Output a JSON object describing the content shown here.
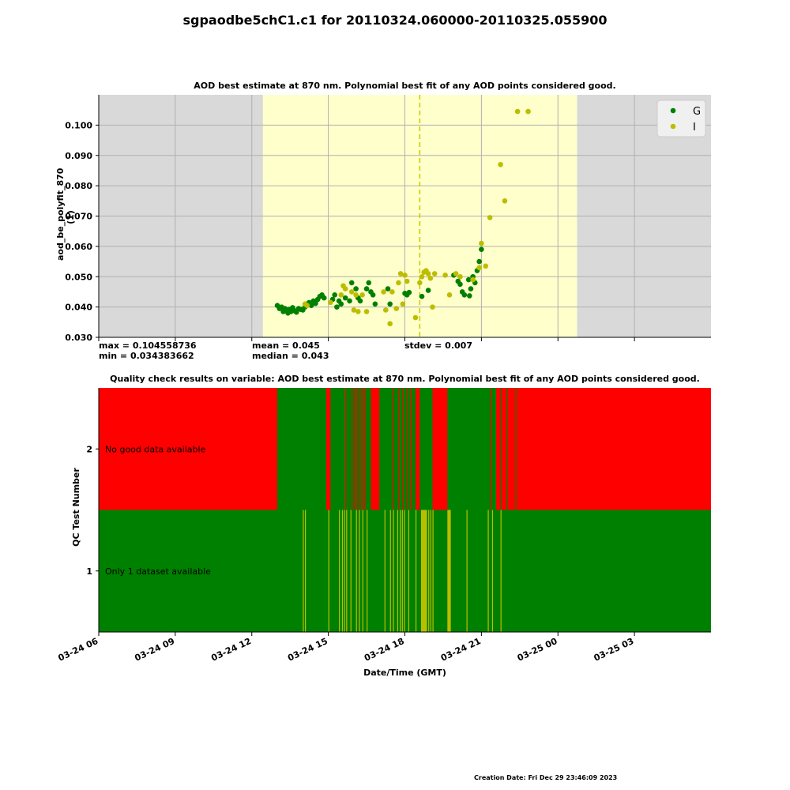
{
  "page": {
    "title": "sgpaodbe5chC1.c1 for 20110324.060000-20110325.055900",
    "footer": "Creation Date: Fri Dec 29 23:46:09 2023"
  },
  "stats": {
    "max": "max = 0.104558736",
    "min": "min = 0.034383662",
    "mean": "mean = 0.045",
    "median": "median = 0.043",
    "stdev": "stdev = 0.007"
  },
  "chart_data": [
    {
      "type": "scatter",
      "title": "AOD best estimate at 870 nm. Polynomial best fit of any AOD points considered good.",
      "xlabel": "",
      "ylabel": "aod_be_polyfit_870 (1)",
      "xlim": [
        "2011-03-24 06:00",
        "2011-03-25 06:00"
      ],
      "ylim": [
        0.03,
        0.11
      ],
      "yticks": [
        "0.030",
        "0.040",
        "0.050",
        "0.060",
        "0.070",
        "0.080",
        "0.090",
        "0.100"
      ],
      "grid": true,
      "legend_position": "top-right",
      "background": {
        "out_of_range": "#d9d9d9",
        "valid": "#ffffcc",
        "valid_range": [
          "2011-03-24 12:26",
          "2011-03-25 00:45"
        ]
      },
      "markers": {
        "dashed_line": "2011-03-24 18:35",
        "dashed_color": "#c8c800"
      },
      "colors": {
        "G": "#008000",
        "I": "#bdbd00"
      },
      "series": [
        {
          "name": "G",
          "points": [
            [
              "2011-03-24 13:00",
              0.0405
            ],
            [
              "2011-03-24 13:05",
              0.0395
            ],
            [
              "2011-03-24 13:10",
              0.04
            ],
            [
              "2011-03-24 13:14",
              0.0385
            ],
            [
              "2011-03-24 13:18",
              0.0395
            ],
            [
              "2011-03-24 13:22",
              0.039
            ],
            [
              "2011-03-24 13:25",
              0.038
            ],
            [
              "2011-03-24 13:28",
              0.0392
            ],
            [
              "2011-03-24 13:32",
              0.0385
            ],
            [
              "2011-03-24 13:36",
              0.0398
            ],
            [
              "2011-03-24 13:40",
              0.0388
            ],
            [
              "2011-03-24 13:45",
              0.0383
            ],
            [
              "2011-03-24 13:50",
              0.0395
            ],
            [
              "2011-03-24 13:55",
              0.0392
            ],
            [
              "2011-03-24 14:00",
              0.039
            ],
            [
              "2011-03-24 14:05",
              0.04
            ],
            [
              "2011-03-24 14:10",
              0.041
            ],
            [
              "2011-03-24 14:15",
              0.0415
            ],
            [
              "2011-03-24 14:20",
              0.0405
            ],
            [
              "2011-03-24 14:25",
              0.042
            ],
            [
              "2011-03-24 14:30",
              0.0412
            ],
            [
              "2011-03-24 14:35",
              0.0425
            ],
            [
              "2011-03-24 14:40",
              0.0435
            ],
            [
              "2011-03-24 14:45",
              0.044
            ],
            [
              "2011-03-24 14:50",
              0.043
            ],
            [
              "2011-03-24 15:10",
              0.0425
            ],
            [
              "2011-03-24 15:15",
              0.044
            ],
            [
              "2011-03-24 15:20",
              0.04
            ],
            [
              "2011-03-24 15:25",
              0.042
            ],
            [
              "2011-03-24 15:30",
              0.041
            ],
            [
              "2011-03-24 15:40",
              0.043
            ],
            [
              "2011-03-24 15:50",
              0.042
            ],
            [
              "2011-03-24 15:55",
              0.048
            ],
            [
              "2011-03-24 16:05",
              0.046
            ],
            [
              "2011-03-24 16:10",
              0.043
            ],
            [
              "2011-03-24 16:15",
              0.042
            ],
            [
              "2011-03-24 16:30",
              0.046
            ],
            [
              "2011-03-24 16:35",
              0.048
            ],
            [
              "2011-03-24 16:40",
              0.045
            ],
            [
              "2011-03-24 16:45",
              0.044
            ],
            [
              "2011-03-24 16:50",
              0.041
            ],
            [
              "2011-03-24 17:20",
              0.046
            ],
            [
              "2011-03-24 17:25",
              0.041
            ],
            [
              "2011-03-24 18:00",
              0.0445
            ],
            [
              "2011-03-24 18:05",
              0.044
            ],
            [
              "2011-03-24 18:10",
              0.0448
            ],
            [
              "2011-03-24 18:40",
              0.0435
            ],
            [
              "2011-03-24 18:55",
              0.0455
            ],
            [
              "2011-03-24 19:55",
              0.0505
            ],
            [
              "2011-03-24 20:05",
              0.0485
            ],
            [
              "2011-03-24 20:10",
              0.0475
            ],
            [
              "2011-03-24 20:15",
              0.045
            ],
            [
              "2011-03-24 20:20",
              0.044
            ],
            [
              "2011-03-24 20:30",
              0.049
            ],
            [
              "2011-03-24 20:35",
              0.046
            ],
            [
              "2011-03-24 20:40",
              0.05
            ],
            [
              "2011-03-24 20:45",
              0.048
            ],
            [
              "2011-03-24 20:50",
              0.052
            ],
            [
              "2011-03-24 20:55",
              0.055
            ],
            [
              "2011-03-24 21:00",
              0.059
            ],
            [
              "2011-03-24 20:32",
              0.0437
            ]
          ]
        },
        {
          "name": "I",
          "points": [
            [
              "2011-03-24 14:05",
              0.041
            ],
            [
              "2011-03-24 14:10",
              0.0405
            ],
            [
              "2011-03-24 15:05",
              0.0415
            ],
            [
              "2011-03-24 15:30",
              0.044
            ],
            [
              "2011-03-24 15:35",
              0.047
            ],
            [
              "2011-03-24 15:40",
              0.046
            ],
            [
              "2011-03-24 15:55",
              0.045
            ],
            [
              "2011-03-24 16:05",
              0.044
            ],
            [
              "2011-03-24 16:00",
              0.039
            ],
            [
              "2011-03-24 16:20",
              0.044
            ],
            [
              "2011-03-24 16:10",
              0.0385
            ],
            [
              "2011-03-24 16:30",
              0.0385
            ],
            [
              "2011-03-24 17:10",
              0.045
            ],
            [
              "2011-03-24 17:15",
              0.039
            ],
            [
              "2011-03-24 17:25",
              0.0345
            ],
            [
              "2011-03-24 17:30",
              0.045
            ],
            [
              "2011-03-24 17:40",
              0.0395
            ],
            [
              "2011-03-24 17:45",
              0.048
            ],
            [
              "2011-03-24 17:50",
              0.051
            ],
            [
              "2011-03-24 17:55",
              0.041
            ],
            [
              "2011-03-24 18:00",
              0.0505
            ],
            [
              "2011-03-24 18:05",
              0.0485
            ],
            [
              "2011-03-24 18:25",
              0.0365
            ],
            [
              "2011-03-24 18:35",
              0.048
            ],
            [
              "2011-03-24 18:40",
              0.05
            ],
            [
              "2011-03-24 18:45",
              0.0515
            ],
            [
              "2011-03-24 18:50",
              0.052
            ],
            [
              "2011-03-24 18:55",
              0.051
            ],
            [
              "2011-03-24 19:00",
              0.0495
            ],
            [
              "2011-03-24 19:05",
              0.04
            ],
            [
              "2011-03-24 19:10",
              0.051
            ],
            [
              "2011-03-24 19:35",
              0.0505
            ],
            [
              "2011-03-24 19:45",
              0.044
            ],
            [
              "2011-03-24 20:00",
              0.051
            ],
            [
              "2011-03-24 20:10",
              0.05
            ],
            [
              "2011-03-24 20:40",
              0.049
            ],
            [
              "2011-03-24 20:55",
              0.053
            ],
            [
              "2011-03-24 21:00",
              0.061
            ],
            [
              "2011-03-24 21:10",
              0.0535
            ],
            [
              "2011-03-24 21:20",
              0.0695
            ],
            [
              "2011-03-24 21:45",
              0.087
            ],
            [
              "2011-03-24 21:55",
              0.075
            ],
            [
              "2011-03-24 22:25",
              0.1045
            ],
            [
              "2011-03-24 22:50",
              0.1045
            ]
          ]
        }
      ]
    },
    {
      "type": "heatmap",
      "title": "Quality check results on variable: AOD best estimate at 870 nm. Polynomial best fit of any AOD points considered good.",
      "xlabel": "Date/Time (GMT)",
      "ylabel": "QC Test Number",
      "xlim": [
        "2011-03-24 06:00",
        "2011-03-25 06:00"
      ],
      "xticks": [
        "03-24 06",
        "03-24 09",
        "03-24 12",
        "03-24 15",
        "03-24 18",
        "03-24 21",
        "03-25 00",
        "03-25 03"
      ],
      "colors": {
        "bad": "#ff0000",
        "good": "#008000",
        "indeterminate": "#bdbd00"
      },
      "rows": [
        {
          "test": "2",
          "label": "No good data available",
          "base": "bad",
          "segments": [
            [
              "2011-03-24 13:00",
              "2011-03-24 14:55",
              "good"
            ],
            [
              "2011-03-24 15:05",
              "2011-03-24 16:40",
              "good"
            ],
            [
              "2011-03-24 17:00",
              "2011-03-24 18:25",
              "good"
            ],
            [
              "2011-03-24 18:35",
              "2011-03-24 19:05",
              "good"
            ],
            [
              "2011-03-24 19:40",
              "2011-03-24 21:35",
              "good"
            ]
          ],
          "overlays": [
            [
              "2011-03-24 15:40",
              "2011-03-24 15:42",
              "bad"
            ],
            [
              "2011-03-24 15:55",
              "2011-03-24 15:57",
              "bad"
            ],
            [
              "2011-03-24 16:02",
              "2011-03-24 16:04",
              "bad"
            ],
            [
              "2011-03-24 16:08",
              "2011-03-24 16:10",
              "bad"
            ],
            [
              "2011-03-24 16:14",
              "2011-03-24 16:16",
              "bad"
            ],
            [
              "2011-03-24 16:20",
              "2011-03-24 16:22",
              "bad"
            ],
            [
              "2011-03-24 16:26",
              "2011-03-24 16:28",
              "bad"
            ],
            [
              "2011-03-24 17:30",
              "2011-03-24 17:32",
              "bad"
            ],
            [
              "2011-03-24 17:45",
              "2011-03-24 17:47",
              "bad"
            ],
            [
              "2011-03-24 17:55",
              "2011-03-24 17:57",
              "bad"
            ],
            [
              "2011-03-24 18:05",
              "2011-03-24 18:07",
              "bad"
            ],
            [
              "2011-03-24 18:12",
              "2011-03-24 18:14",
              "bad"
            ],
            [
              "2011-03-24 21:35",
              "2011-03-24 22:25",
              "bad"
            ],
            [
              "2011-03-24 21:20",
              "2011-03-24 21:22",
              "bad"
            ],
            [
              "2011-03-24 21:45",
              "2011-03-24 21:47",
              "good"
            ],
            [
              "2011-03-24 22:00",
              "2011-03-24 22:02",
              "good"
            ],
            [
              "2011-03-24 22:20",
              "2011-03-24 22:22",
              "good"
            ]
          ]
        },
        {
          "test": "1",
          "label": "Only 1 dataset available",
          "base": "good",
          "segments": [],
          "overlays": [
            [
              "2011-03-24 14:00",
              "2011-03-24 14:01",
              "indeterminate"
            ],
            [
              "2011-03-24 14:05",
              "2011-03-24 14:06",
              "indeterminate"
            ],
            [
              "2011-03-24 15:00",
              "2011-03-24 15:01",
              "indeterminate"
            ],
            [
              "2011-03-24 15:25",
              "2011-03-24 15:26",
              "indeterminate"
            ],
            [
              "2011-03-24 15:32",
              "2011-03-24 15:33",
              "indeterminate"
            ],
            [
              "2011-03-24 15:37",
              "2011-03-24 15:38",
              "indeterminate"
            ],
            [
              "2011-03-24 15:42",
              "2011-03-24 15:43",
              "indeterminate"
            ],
            [
              "2011-03-24 15:52",
              "2011-03-24 15:53",
              "indeterminate"
            ],
            [
              "2011-03-24 16:05",
              "2011-03-24 16:06",
              "indeterminate"
            ],
            [
              "2011-03-24 16:12",
              "2011-03-24 16:13",
              "indeterminate"
            ],
            [
              "2011-03-24 16:20",
              "2011-03-24 16:21",
              "indeterminate"
            ],
            [
              "2011-03-24 16:30",
              "2011-03-24 16:31",
              "indeterminate"
            ],
            [
              "2011-03-24 17:12",
              "2011-03-24 17:13",
              "indeterminate"
            ],
            [
              "2011-03-24 17:25",
              "2011-03-24 17:27",
              "indeterminate"
            ],
            [
              "2011-03-24 17:32",
              "2011-03-24 17:33",
              "indeterminate"
            ],
            [
              "2011-03-24 17:42",
              "2011-03-24 17:43",
              "indeterminate"
            ],
            [
              "2011-03-24 17:48",
              "2011-03-24 17:49",
              "indeterminate"
            ],
            [
              "2011-03-24 17:53",
              "2011-03-24 17:54",
              "indeterminate"
            ],
            [
              "2011-03-24 17:58",
              "2011-03-24 17:59",
              "indeterminate"
            ],
            [
              "2011-03-24 18:08",
              "2011-03-24 18:09",
              "indeterminate"
            ],
            [
              "2011-03-24 18:25",
              "2011-03-24 18:26",
              "indeterminate"
            ],
            [
              "2011-03-24 18:38",
              "2011-03-24 18:52",
              "indeterminate"
            ],
            [
              "2011-03-24 18:55",
              "2011-03-24 18:56",
              "indeterminate"
            ],
            [
              "2011-03-24 19:00",
              "2011-03-24 19:02",
              "indeterminate"
            ],
            [
              "2011-03-24 19:05",
              "2011-03-24 19:06",
              "indeterminate"
            ],
            [
              "2011-03-24 19:40",
              "2011-03-24 19:48",
              "indeterminate"
            ],
            [
              "2011-03-24 20:25",
              "2011-03-24 20:27",
              "indeterminate"
            ],
            [
              "2011-03-24 21:15",
              "2011-03-24 21:16",
              "indeterminate"
            ],
            [
              "2011-03-24 21:25",
              "2011-03-24 21:26",
              "indeterminate"
            ],
            [
              "2011-03-24 21:45",
              "2011-03-24 21:46",
              "indeterminate"
            ]
          ]
        }
      ]
    }
  ]
}
